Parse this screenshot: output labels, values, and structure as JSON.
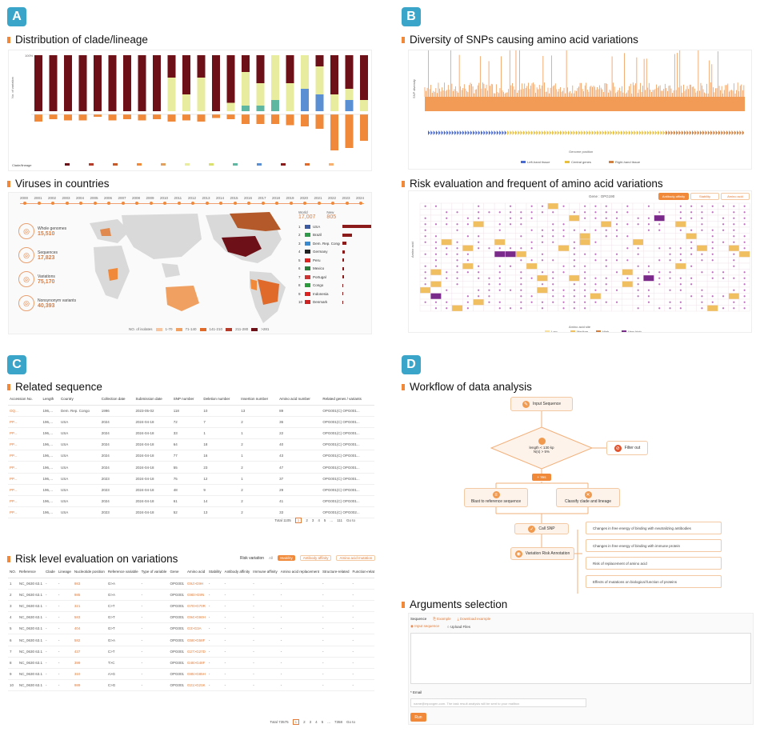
{
  "panels": {
    "a": {
      "badge": "A",
      "title1": "Distribution of clade/lineage",
      "title2": "Viruses in countries",
      "clade_axis_top": "100%",
      "clade_axis_label": "No. of variation",
      "clade_xlabel": "Clade/lineage",
      "years": [
        "2000",
        "2001",
        "2002",
        "2003",
        "2004",
        "2005",
        "2006",
        "2007",
        "2008",
        "2009",
        "2010",
        "2011",
        "2012",
        "2013",
        "2014",
        "2015",
        "2016",
        "2017",
        "2018",
        "2019",
        "2020",
        "2021",
        "2022",
        "2023",
        "2024"
      ],
      "stats": [
        {
          "label": "Whole genomes",
          "value": "15,510"
        },
        {
          "label": "Sequences",
          "value": "17,823"
        },
        {
          "label": "Variations",
          "value": "75,170"
        },
        {
          "label": "Nonsynonym variants",
          "value": "40,393"
        }
      ],
      "world_label": "World",
      "world_value": "17,007",
      "new_label": "New",
      "new_value": "805",
      "countries": [
        {
          "name": "USA",
          "num": "1"
        },
        {
          "name": "Brazil",
          "num": "2"
        },
        {
          "name": "Dem. Rep. Congo",
          "num": "3"
        },
        {
          "name": "Germany",
          "num": "4"
        },
        {
          "name": "Peru",
          "num": "5"
        },
        {
          "name": "Mexico",
          "num": "6"
        },
        {
          "name": "Portugal",
          "num": "7"
        },
        {
          "name": "Congo",
          "num": "8"
        },
        {
          "name": "Indonesia",
          "num": "9"
        },
        {
          "name": "Denmark",
          "num": "10"
        }
      ],
      "map_legend_label": "NO. of isolates",
      "map_legend": [
        "1-70",
        "71-140",
        "141-210",
        "211-280",
        ">281"
      ]
    },
    "b": {
      "badge": "B",
      "title1": "Diversity of SNPs causing amino acid variations",
      "title2": "Risk evaluation and frequent of amino acid variations",
      "snp_ylabel": "SNP diversity",
      "snp_xlabel": "Genome position",
      "snp_legend": [
        "Left-hand tissue",
        "Central genes",
        "Right-hand tissue"
      ],
      "risk_gene_label": "Gene : OPG190",
      "risk_tabs": [
        "Antibody affinity",
        "Stability",
        "Amino acid"
      ],
      "risk_ylabel": "Amino acid",
      "risk_xlabel": "Amino acid site",
      "risk_legend": [
        "Low",
        "Medium",
        "High",
        "Very high"
      ]
    },
    "c": {
      "badge": "C",
      "title1": "Related sequence",
      "title2": "Risk level evaluation on variations",
      "seq_headers": [
        "Accession No.",
        "Length",
        "Country",
        "Collection date",
        "Submission date",
        "SNP number",
        "Deletion number",
        "Insertion number",
        "Amino acid number",
        "Related genes / variants"
      ],
      "seq_rows": [
        [
          "OQ...",
          "196,...",
          "Dem. Rep. Congo",
          "1996",
          "2023-05-02",
          "118",
          "10",
          "13",
          "89",
          "OPG001(C) OPG001..."
        ],
        [
          "PP...",
          "196,...",
          "USA",
          "2024",
          "2024-04-18",
          "72",
          "7",
          "2",
          "36",
          "OPG001(C) OPG001..."
        ],
        [
          "PP...",
          "196,...",
          "USA",
          "2024",
          "2024-04-18",
          "33",
          "1",
          "1",
          "22",
          "OPG001(C) OPG001..."
        ],
        [
          "PP...",
          "196,...",
          "USA",
          "2024",
          "2024-04-18",
          "64",
          "18",
          "2",
          "40",
          "OPG001(C) OPG001..."
        ],
        [
          "PP...",
          "196,...",
          "USA",
          "2024",
          "2024-04-18",
          "77",
          "16",
          "1",
          "43",
          "OPG001(C) OPG001..."
        ],
        [
          "PP...",
          "196,...",
          "USA",
          "2024",
          "2024-04-18",
          "55",
          "23",
          "2",
          "47",
          "OPG001(C) OPG001..."
        ],
        [
          "PP...",
          "196,...",
          "USA",
          "2023",
          "2024-04-18",
          "75",
          "12",
          "1",
          "37",
          "OPG001(C) OPG001..."
        ],
        [
          "PP...",
          "196,...",
          "USA",
          "2023",
          "2024-04-18",
          "48",
          "9",
          "2",
          "29",
          "OPG001(C) OPG001..."
        ],
        [
          "PP...",
          "196,...",
          "USA",
          "2024",
          "2024-04-18",
          "61",
          "14",
          "2",
          "41",
          "OPG001(C) OPG001..."
        ],
        [
          "PP...",
          "196,...",
          "USA",
          "2023",
          "2024-04-18",
          "52",
          "13",
          "2",
          "33",
          "OPG001(C) OPG002..."
        ]
      ],
      "seq_pager": [
        "Total 1105",
        "1",
        "2",
        "3",
        "4",
        "5",
        "...",
        "111",
        "Go to"
      ],
      "risk_label": "Risk variation",
      "risk_filters": [
        "All",
        "Stability",
        "Antibody affinity",
        "Amino acid mutation"
      ],
      "risk_headers": [
        "NO.",
        "Reference",
        "Clade",
        "Lineage",
        "Nucleotide position",
        "Reference variable",
        "Type of variable",
        "Gene",
        "Amino acid",
        "Stability",
        "Antibody affinity",
        "Immune affinity",
        "Amino acid replacement",
        "Structure-related",
        "Function-related"
      ],
      "risk_rows": [
        [
          "1",
          "NC_0630 63.1",
          "-",
          "-",
          "983",
          "G>A",
          "-",
          "OPG001",
          "G9J>G9H",
          "-",
          "-",
          "-",
          "-",
          "-",
          "-"
        ],
        [
          "2",
          "NC_0630 63.1",
          "-",
          "-",
          "985",
          "G>A",
          "-",
          "OPG001",
          "G9D>G9N",
          "-",
          "-",
          "-",
          "-",
          "-",
          "-"
        ],
        [
          "3",
          "NC_0630 63.1",
          "-",
          "-",
          "321",
          "C>T",
          "-",
          "OPG001",
          "G70>G70R",
          "-",
          "-",
          "-",
          "-",
          "-",
          "-"
        ],
        [
          "4",
          "NC_0630 63.1",
          "-",
          "-",
          "583",
          "G>T",
          "-",
          "OPG001",
          "G94>G94H",
          "-",
          "-",
          "-",
          "-",
          "-",
          "-"
        ],
        [
          "5",
          "NC_0630 63.1",
          "-",
          "-",
          "404",
          "G>T",
          "-",
          "OPG001",
          "G3>G3A",
          "-",
          "-",
          "-",
          "-",
          "-",
          "-"
        ],
        [
          "6",
          "NC_0630 63.1",
          "-",
          "-",
          "582",
          "G>A",
          "-",
          "OPG001",
          "G58>G58F",
          "-",
          "-",
          "-",
          "-",
          "-",
          "-"
        ],
        [
          "7",
          "NC_0630 63.1",
          "-",
          "-",
          "437",
          "C>T",
          "-",
          "OPG001",
          "G27>G27D",
          "-",
          "-",
          "-",
          "-",
          "-",
          "-"
        ],
        [
          "8",
          "NC_0630 63.1",
          "-",
          "-",
          "399",
          "T>C",
          "-",
          "OPG001",
          "G48>G48F",
          "-",
          "-",
          "-",
          "-",
          "-",
          "-"
        ],
        [
          "9",
          "NC_0630 63.1",
          "-",
          "-",
          "310",
          "A>G",
          "-",
          "OPG001",
          "G85>G85H",
          "-",
          "-",
          "-",
          "-",
          "-",
          "-"
        ],
        [
          "10",
          "NC_0630 63.1",
          "-",
          "-",
          "989",
          "C>G",
          "-",
          "OPG001",
          "G21>G21K",
          "-",
          "-",
          "-",
          "-",
          "-",
          "-"
        ]
      ],
      "risk_pager": [
        "Total 73575",
        "1",
        "2",
        "3",
        "4",
        "5",
        "...",
        "7358",
        "Go to"
      ]
    },
    "d": {
      "badge": "D",
      "title1": "Workflow of data analysis",
      "title2": "Arguments selection",
      "wf_input": "Input Sequence",
      "wf_decision_line1": "length < 130 kp",
      "wf_decision_line2": "N(s) > 5%",
      "wf_filter": "Filter out",
      "wf_pass": "+ Yes",
      "wf_blast": "Blast to reference sequence",
      "wf_classify": "Classify clade and lineage",
      "wf_call": "Call SNP",
      "wf_annot": "Variation Risk Annotation",
      "wf_outputs": [
        "Changes in free energy of binding with neutralizing antibodies",
        "Changes in free energy of binding with immune protein",
        "Risk of replacement of amino acid",
        "Effects of mutations on biological function of proteins"
      ],
      "args_sequence_label": "Sequence",
      "args_example": "Example",
      "args_download": "Download example",
      "args_radio1": "Input sequence",
      "args_radio2": "Upload Files",
      "args_email_label": "* Email",
      "args_email_placeholder": "name@mpoxgen.com. The task result analysis will be sent to your mailbox",
      "args_run": "Run"
    }
  },
  "colors": {
    "accent": "#f08a3a",
    "badge": "#3aa5c9",
    "dark_red": "#7a1420",
    "light_yellow": "#e7ec9f",
    "teal": "#5fb7a2",
    "blue": "#5b8fd4"
  }
}
